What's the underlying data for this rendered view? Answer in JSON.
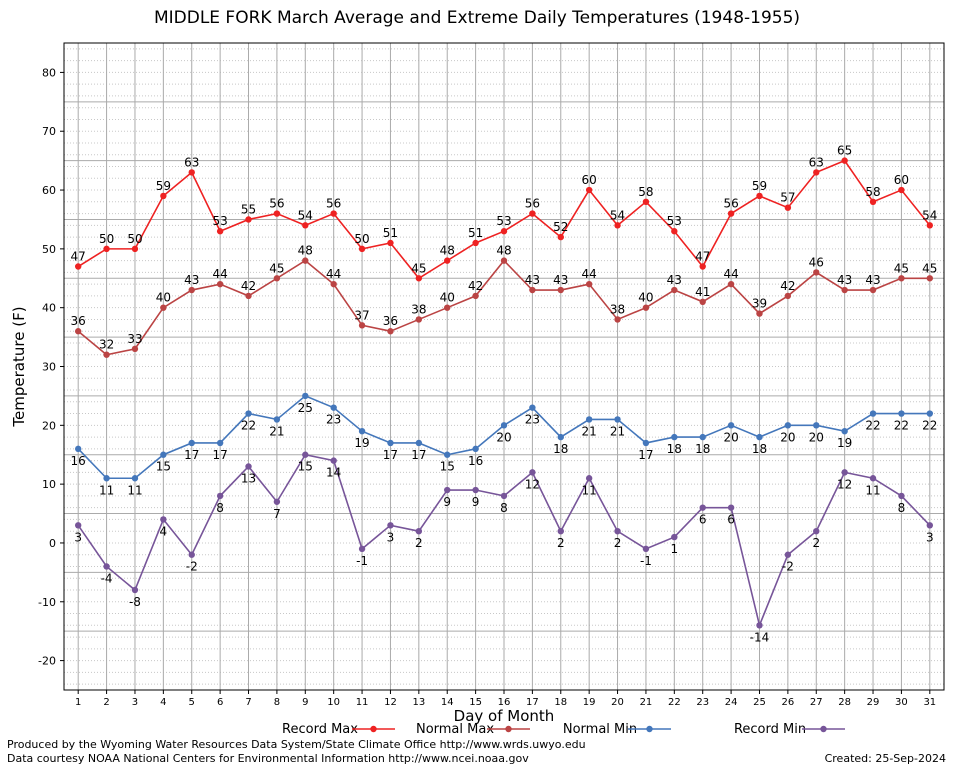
{
  "chart_data": {
    "type": "line",
    "title": "MIDDLE FORK March Average and Extreme Daily Temperatures (1948-1955)",
    "xlabel": "Day of Month",
    "ylabel": "Temperature (F)",
    "x": [
      1,
      2,
      3,
      4,
      5,
      6,
      7,
      8,
      9,
      10,
      11,
      12,
      13,
      14,
      15,
      16,
      17,
      18,
      19,
      20,
      21,
      22,
      23,
      24,
      25,
      26,
      27,
      28,
      29,
      30,
      31
    ],
    "ylim": [
      -25,
      85
    ],
    "xlim": [
      0.5,
      31.5
    ],
    "yticks": [
      -20,
      -10,
      0,
      10,
      20,
      30,
      40,
      50,
      60,
      70,
      80
    ],
    "grid": true,
    "legend_position": "bottom",
    "series": [
      {
        "name": "Record Max",
        "color": "#ee2222",
        "values": [
          47,
          50,
          50,
          59,
          63,
          53,
          55,
          56,
          54,
          56,
          50,
          51,
          45,
          48,
          51,
          53,
          56,
          52,
          60,
          54,
          58,
          53,
          47,
          56,
          59,
          57,
          63,
          65,
          58,
          60,
          54
        ]
      },
      {
        "name": "Normal Max",
        "color": "#bb4444",
        "values": [
          36,
          32,
          33,
          40,
          43,
          44,
          42,
          45,
          48,
          44,
          37,
          36,
          38,
          40,
          42,
          48,
          43,
          43,
          44,
          38,
          40,
          43,
          41,
          44,
          39,
          42,
          46,
          43,
          43,
          45,
          45
        ]
      },
      {
        "name": "Normal Min",
        "color": "#4477bb",
        "values": [
          16,
          11,
          11,
          15,
          17,
          17,
          22,
          21,
          25,
          23,
          19,
          17,
          17,
          15,
          16,
          20,
          23,
          18,
          21,
          21,
          17,
          18,
          18,
          20,
          18,
          20,
          20,
          19,
          22,
          22,
          22
        ]
      },
      {
        "name": "Record Min",
        "color": "#775599",
        "values": [
          3,
          -4,
          -8,
          4,
          -2,
          8,
          13,
          7,
          15,
          14,
          -1,
          3,
          2,
          9,
          9,
          8,
          12,
          2,
          11,
          2,
          -1,
          1,
          6,
          6,
          -14,
          -2,
          2,
          12,
          11,
          8,
          3
        ]
      }
    ]
  },
  "footer": {
    "line1": "Produced by the Wyoming Water Resources Data System/State Climate Office http://www.wrds.uwyo.edu",
    "line2": "Data courtesy NOAA National Centers for Environmental Information http://www.ncei.noaa.gov",
    "created": "Created:  25-Sep-2024"
  }
}
